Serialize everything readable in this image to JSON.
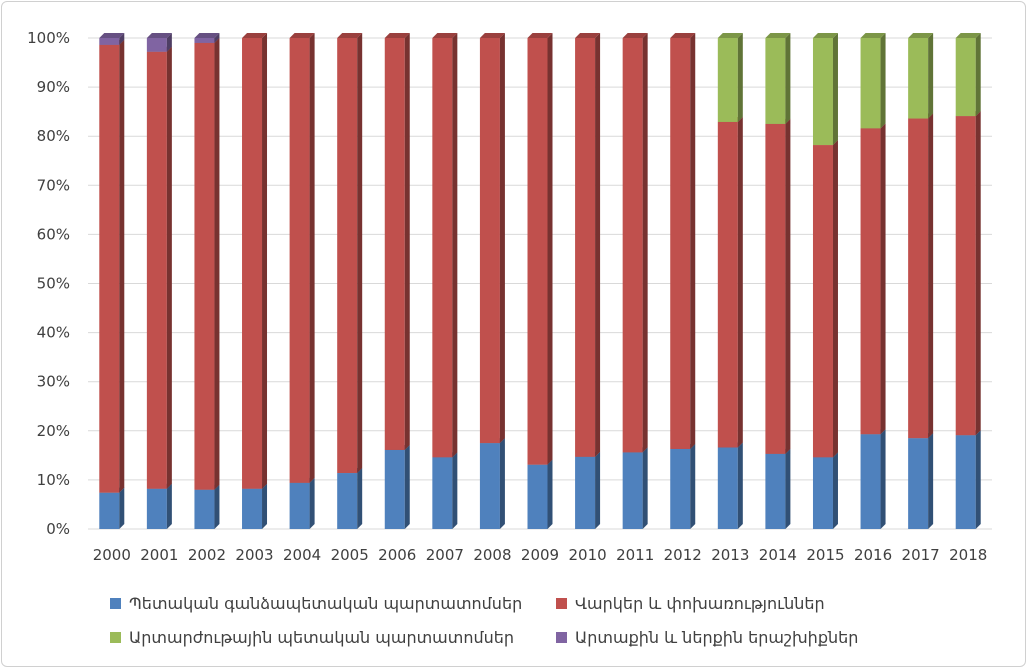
{
  "chart_data": {
    "type": "bar",
    "stacked": "percent",
    "categories": [
      "2000",
      "2001",
      "2002",
      "2003",
      "2004",
      "2005",
      "2006",
      "2007",
      "2008",
      "2009",
      "2010",
      "2011",
      "2012",
      "2013",
      "2014",
      "2015",
      "2016",
      "2017",
      "2018"
    ],
    "series": [
      {
        "name": "Պետական գանձապետական պարտատոմսեր",
        "color": "#4F81BD",
        "values": [
          7.4,
          8.2,
          8.0,
          8.2,
          9.4,
          11.4,
          16.1,
          14.6,
          17.5,
          13.1,
          14.7,
          15.6,
          16.3,
          16.6,
          15.3,
          14.6,
          19.3,
          18.5,
          19.1
        ]
      },
      {
        "name": "Վարկեր և փոխառություններ",
        "color": "#C0504D",
        "values": [
          91.2,
          89.0,
          91.0,
          91.8,
          90.6,
          88.6,
          83.9,
          85.4,
          82.5,
          86.9,
          85.3,
          84.4,
          83.7,
          66.3,
          67.2,
          63.6,
          62.3,
          65.1,
          65.0
        ]
      },
      {
        "name": "Արտարժութային պետական պարտատոմսեր",
        "color": "#9BBB59",
        "values": [
          0,
          0,
          0,
          0,
          0,
          0,
          0,
          0,
          0,
          0,
          0,
          0,
          0,
          17.1,
          17.5,
          21.8,
          18.4,
          16.4,
          15.9
        ]
      },
      {
        "name": "Արտաքին և ներքին երաշխիքներ",
        "color": "#8064A2",
        "values": [
          1.4,
          2.8,
          1.0,
          0,
          0,
          0,
          0,
          0,
          0,
          0,
          0,
          0,
          0,
          0,
          0,
          0,
          0,
          0,
          0
        ]
      }
    ],
    "yticks": [
      "0%",
      "10%",
      "20%",
      "30%",
      "40%",
      "50%",
      "60%",
      "70%",
      "80%",
      "90%",
      "100%"
    ],
    "ylim": [
      0,
      100
    ],
    "grid": true,
    "legend_position": "bottom"
  }
}
